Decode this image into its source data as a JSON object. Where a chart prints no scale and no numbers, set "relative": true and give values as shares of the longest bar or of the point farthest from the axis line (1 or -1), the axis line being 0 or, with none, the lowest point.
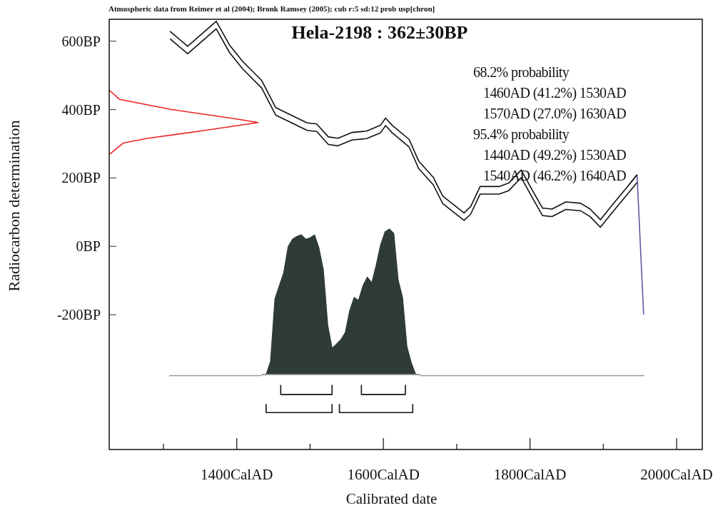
{
  "chart_data": [
    {
      "type": "line",
      "title": "Hela-2198 : 362±30BP",
      "xlabel": "Calibrated date",
      "ylabel": "Radiocarbon determination",
      "annotations": [
        "Atmospheric data from Reimer et al (2004); Bronk Ramsey (2005); cub r:5 sd:12 prob usp[chron]",
        "68.2% probability",
        "1460AD (41.2%) 1530AD",
        "1570AD (27.0%) 1630AD",
        "95.4% probability",
        "1440AD (49.2%) 1530AD",
        "1540AD (46.2%) 1640AD"
      ],
      "xlim": [
        1226,
        2035
      ],
      "ylim": [
        -594,
        664
      ],
      "xticks": [
        {
          "value": 1300,
          "label": null
        },
        {
          "value": 1400,
          "label": "1400CalAD"
        },
        {
          "value": 1500,
          "label": null
        },
        {
          "value": 1600,
          "label": "1600CalAD"
        },
        {
          "value": 1700,
          "label": null
        },
        {
          "value": 1800,
          "label": "1800CalAD"
        },
        {
          "value": 1900,
          "label": null
        },
        {
          "value": 2000,
          "label": "2000CalAD"
        }
      ],
      "yticks": [
        {
          "value": -200,
          "label": "-200BP"
        },
        {
          "value": 0,
          "label": "0BP"
        },
        {
          "value": 200,
          "label": "200BP"
        },
        {
          "value": 400,
          "label": "400BP"
        },
        {
          "value": 600,
          "label": "600BP"
        }
      ],
      "grid": false,
      "marker": "none",
      "line_style": "solid",
      "series": [
        {
          "color": "#5a5aa0",
          "x": [
            1935,
            1946,
            1955
          ],
          "values": [
            180,
            209,
            -199
          ]
        },
        {
          "color": "#111111",
          "x": [
            1309,
            1333,
            1372,
            1390,
            1408,
            1434,
            1453,
            1473,
            1496,
            1509,
            1525,
            1538,
            1557,
            1577,
            1596,
            1603,
            1612,
            1635,
            1648,
            1668,
            1681,
            1710,
            1719,
            1732,
            1758,
            1771,
            1788,
            1804,
            1817,
            1830,
            1849,
            1869,
            1882,
            1896,
            1914,
            1933,
            1946
          ],
          "values": [
            629,
            585,
            658,
            589,
            541,
            485,
            406,
            385,
            361,
            358,
            320,
            316,
            333,
            337,
            354,
            375,
            354,
            313,
            250,
            202,
            147,
            98,
            116,
            175,
            175,
            185,
            223,
            161,
            112,
            109,
            130,
            126,
            109,
            78,
            126,
            175,
            209
          ]
        },
        {
          "color": "#111111",
          "x": [
            1309,
            1333,
            1372,
            1390,
            1408,
            1434,
            1453,
            1473,
            1496,
            1509,
            1525,
            1538,
            1557,
            1577,
            1596,
            1603,
            1612,
            1635,
            1648,
            1668,
            1681,
            1710,
            1719,
            1732,
            1758,
            1771,
            1788,
            1804,
            1817,
            1830,
            1849,
            1869,
            1882,
            1896,
            1914,
            1933,
            1946
          ],
          "values": [
            607,
            563,
            636,
            567,
            519,
            463,
            384,
            363,
            339,
            336,
            298,
            294,
            311,
            315,
            332,
            353,
            332,
            291,
            228,
            180,
            125,
            76,
            94,
            153,
            153,
            163,
            201,
            139,
            90,
            87,
            108,
            104,
            87,
            56,
            104,
            153,
            187
          ]
        },
        {
          "color": "#ee2222",
          "x": [
            1226,
            1240,
            1311,
            1395,
            1429,
            1350,
            1279,
            1245,
            1227
          ],
          "values": [
            457,
            430,
            400,
            374,
            362,
            337,
            316,
            302,
            270
          ]
        },
        {
          "color": "#999999",
          "x": [
            1308,
            1434
          ],
          "values": [
            -378,
            -378
          ]
        },
        {
          "color": "#999999",
          "x": [
            1650,
            1956
          ],
          "values": [
            -378,
            -378
          ]
        },
        {
          "color": "#111111",
          "x": [
            1460,
            1460,
            1530,
            1530
          ],
          "values": [
            -405,
            -433,
            -433,
            -405
          ]
        },
        {
          "color": "#111111",
          "x": [
            1570,
            1570,
            1630,
            1630
          ],
          "values": [
            -405,
            -433,
            -433,
            -405
          ]
        },
        {
          "color": "#111111",
          "x": [
            1440,
            1440,
            1530,
            1530
          ],
          "values": [
            -461,
            -486,
            -486,
            -461
          ]
        },
        {
          "color": "#111111",
          "x": [
            1540,
            1540,
            1640,
            1640
          ],
          "values": [
            -461,
            -486,
            -486,
            -461
          ]
        }
      ]
    },
    {
      "type": "area",
      "relative": true,
      "categories": [
        null,
        null,
        null,
        null,
        null,
        null,
        null,
        null,
        null,
        null,
        null,
        null,
        null,
        null,
        null,
        null,
        null,
        null,
        null,
        null,
        null,
        null,
        null,
        null,
        null,
        null,
        null,
        null,
        null,
        null,
        null,
        null,
        null,
        null,
        null,
        null,
        null
      ],
      "series": [
        {
          "color": "#2f3b38",
          "values": [
            0,
            0,
            0.09,
            0.52,
            0.61,
            0.7,
            0.88,
            0.93,
            0.95,
            0.96,
            0.93,
            0.94,
            0.96,
            0.87,
            0.72,
            0.34,
            0.18,
            0.21,
            0.24,
            0.29,
            0.44,
            0.53,
            0.51,
            0.61,
            0.67,
            0.63,
            0.75,
            0.89,
            0.98,
            1,
            0.97,
            0.65,
            0.53,
            0.19,
            0.08,
            0,
            0
          ]
        }
      ]
    }
  ]
}
